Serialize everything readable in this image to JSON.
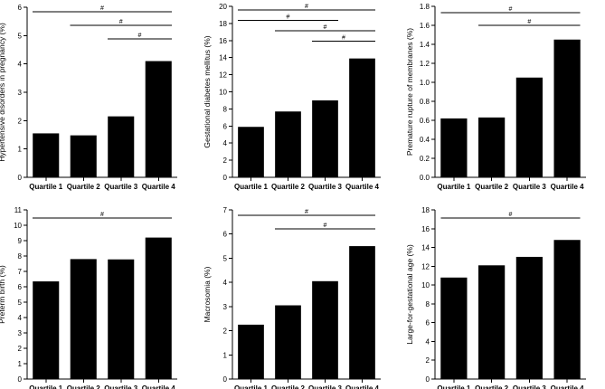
{
  "colors": {
    "bar": "#000000",
    "axis": "#000000",
    "background": "#ffffff"
  },
  "chart_data": [
    {
      "type": "bar",
      "title": "",
      "xlabel": "",
      "ylabel": "Hypertensive disorders in pregnancy (%)",
      "categories": [
        "Quartile 1",
        "Quartile 2",
        "Quartile 3",
        "Quartile 4"
      ],
      "values": [
        1.55,
        1.48,
        2.15,
        4.1
      ],
      "ylim": [
        0,
        6
      ],
      "yticks": [
        0,
        1,
        2,
        3,
        4,
        5,
        6
      ],
      "significance": [
        {
          "from": 0,
          "to": 3,
          "mark": "#"
        },
        {
          "from": 1,
          "to": 3,
          "mark": "#"
        },
        {
          "from": 2,
          "to": 3,
          "mark": "#"
        }
      ]
    },
    {
      "type": "bar",
      "title": "",
      "xlabel": "",
      "ylabel": "Gestational diabetes mellitus (%)",
      "categories": [
        "Quartile 1",
        "Quartile 2",
        "Quartile 3",
        "Quartile 4"
      ],
      "values": [
        5.9,
        7.7,
        9.0,
        13.9
      ],
      "ylim": [
        0,
        20
      ],
      "yticks": [
        0,
        2,
        4,
        6,
        8,
        10,
        12,
        14,
        16,
        18,
        20
      ],
      "significance": [
        {
          "from": 0,
          "to": 3,
          "mark": "#"
        },
        {
          "from": 0,
          "to": 2,
          "mark": "#"
        },
        {
          "from": 1,
          "to": 3,
          "mark": "#"
        },
        {
          "from": 2,
          "to": 3,
          "mark": "#"
        }
      ]
    },
    {
      "type": "bar",
      "title": "",
      "xlabel": "",
      "ylabel": "Premature rupture of membranes (%)",
      "categories": [
        "Quartile 1",
        "Quartile 2",
        "Quartile 3",
        "Quartile 4"
      ],
      "values": [
        0.62,
        0.63,
        1.05,
        1.45
      ],
      "ylim": [
        0,
        1.8
      ],
      "yticks": [
        "0.0",
        "0.2",
        "0.4",
        "0.6",
        "0.8",
        "1.0",
        "1.2",
        "1.4",
        "1.6",
        "1.8"
      ],
      "significance": [
        {
          "from": 0,
          "to": 3,
          "mark": "#"
        },
        {
          "from": 1,
          "to": 3,
          "mark": "#"
        }
      ]
    },
    {
      "type": "bar",
      "title": "",
      "xlabel": "",
      "ylabel": "Preterm birth (%)",
      "categories": [
        "Quartile 1",
        "Quartile 2",
        "Quartile 3",
        "Quartile 4"
      ],
      "values": [
        6.35,
        7.8,
        7.78,
        9.2
      ],
      "ylim": [
        0,
        11
      ],
      "yticks": [
        0,
        1,
        2,
        3,
        4,
        5,
        6,
        7,
        8,
        9,
        10,
        11
      ],
      "significance": [
        {
          "from": 0,
          "to": 3,
          "mark": "#"
        }
      ]
    },
    {
      "type": "bar",
      "title": "",
      "xlabel": "",
      "ylabel": "Macrosomia (%)",
      "categories": [
        "Quartile 1",
        "Quartile 2",
        "Quartile 3",
        "Quartile 4"
      ],
      "values": [
        2.25,
        3.05,
        4.05,
        5.5
      ],
      "ylim": [
        0,
        7
      ],
      "yticks": [
        0,
        1,
        2,
        3,
        4,
        5,
        6,
        7
      ],
      "significance": [
        {
          "from": 0,
          "to": 3,
          "mark": "#"
        },
        {
          "from": 1,
          "to": 3,
          "mark": "#"
        }
      ]
    },
    {
      "type": "bar",
      "title": "",
      "xlabel": "",
      "ylabel": "Large-for-gestational age (%)",
      "categories": [
        "Quartile 1",
        "Quartile 2",
        "Quartile 3",
        "Quartile 4"
      ],
      "values": [
        10.8,
        12.1,
        13.0,
        14.8
      ],
      "ylim": [
        0,
        18
      ],
      "yticks": [
        0,
        2,
        4,
        6,
        8,
        10,
        12,
        14,
        16,
        18
      ],
      "significance": [
        {
          "from": 0,
          "to": 3,
          "mark": "#"
        }
      ]
    }
  ]
}
